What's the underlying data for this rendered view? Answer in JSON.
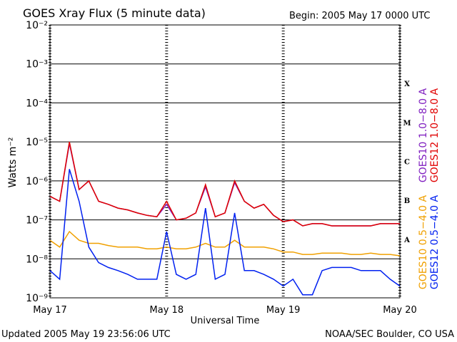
{
  "chart_data": {
    "type": "line",
    "title": "GOES Xray Flux (5 minute data)",
    "subtitle": "Begin:  2005 May 17 0000 UTC",
    "ylabel": "Watts m⁻²",
    "xlabel": "Universal Time",
    "footer_left": "Updated 2005 May 19 23:56:06 UTC",
    "footer_right": "NOAA/SEC Boulder, CO USA",
    "flare_classes": [
      "A",
      "B",
      "C",
      "M",
      "X"
    ],
    "log_y": true,
    "grid": true,
    "xlim": [
      0,
      72
    ],
    "xticks": [
      {
        "value": 0,
        "label": "May 17"
      },
      {
        "value": 24,
        "label": "May 18"
      },
      {
        "value": 48,
        "label": "May 19"
      },
      {
        "value": 72,
        "label": "May 20"
      }
    ],
    "ylim": [
      1e-09,
      0.01
    ],
    "yticks": [
      {
        "value": 1e-09,
        "label": "10⁻⁹"
      },
      {
        "value": 1e-08,
        "label": "10⁻⁸"
      },
      {
        "value": 1e-07,
        "label": "10⁻⁷"
      },
      {
        "value": 1e-06,
        "label": "10⁻⁶"
      },
      {
        "value": 1e-05,
        "label": "10⁻⁵"
      },
      {
        "value": 0.0001,
        "label": "10⁻⁴"
      },
      {
        "value": 0.001,
        "label": "10⁻³"
      },
      {
        "value": 0.01,
        "label": "10⁻²"
      }
    ],
    "x": [
      0,
      2,
      4,
      6,
      8,
      10,
      12,
      14,
      16,
      18,
      20,
      22,
      24,
      26,
      28,
      30,
      32,
      34,
      36,
      38,
      40,
      42,
      44,
      46,
      48,
      50,
      52,
      54,
      56,
      58,
      60,
      62,
      64,
      66,
      68,
      70,
      72
    ],
    "series": [
      {
        "name": "GOES10 1.0−8.0 A",
        "color": "#8020c0",
        "values": [
          4e-07,
          3e-07,
          9e-06,
          6e-07,
          1e-06,
          3e-07,
          2.5e-07,
          2e-07,
          1.8e-07,
          1.5e-07,
          1.3e-07,
          1.2e-07,
          2.5e-07,
          1e-07,
          1.1e-07,
          1.5e-07,
          7e-07,
          1.2e-07,
          1.5e-07,
          9e-07,
          3e-07,
          2e-07,
          2.5e-07,
          1.3e-07,
          9e-08,
          1e-07,
          7e-08,
          8e-08,
          8e-08,
          7e-08,
          7e-08,
          7e-08,
          7e-08,
          7e-08,
          8e-08,
          8e-08,
          8e-08
        ]
      },
      {
        "name": "GOES12 1.0−8.0 A",
        "color": "#e00000",
        "values": [
          4e-07,
          3e-07,
          1e-05,
          6e-07,
          1e-06,
          3e-07,
          2.5e-07,
          2e-07,
          1.8e-07,
          1.5e-07,
          1.3e-07,
          1.2e-07,
          3e-07,
          1e-07,
          1.1e-07,
          1.5e-07,
          8e-07,
          1.2e-07,
          1.5e-07,
          1e-06,
          3e-07,
          2e-07,
          2.5e-07,
          1.3e-07,
          9e-08,
          1e-07,
          7e-08,
          8e-08,
          8e-08,
          7e-08,
          7e-08,
          7e-08,
          7e-08,
          7e-08,
          8e-08,
          8e-08,
          8e-08
        ]
      },
      {
        "name": "GOES10 0.5−4.0 A",
        "color": "#f0a000",
        "values": [
          3e-08,
          2e-08,
          5e-08,
          3e-08,
          2.5e-08,
          2.5e-08,
          2.2e-08,
          2e-08,
          2e-08,
          2e-08,
          1.8e-08,
          1.8e-08,
          2e-08,
          1.8e-08,
          1.8e-08,
          2e-08,
          2.5e-08,
          2e-08,
          2e-08,
          3e-08,
          2e-08,
          2e-08,
          2e-08,
          1.8e-08,
          1.5e-08,
          1.5e-08,
          1.3e-08,
          1.3e-08,
          1.4e-08,
          1.4e-08,
          1.4e-08,
          1.3e-08,
          1.3e-08,
          1.4e-08,
          1.3e-08,
          1.3e-08,
          1.2e-08
        ]
      },
      {
        "name": "GOES12 0.5−4.0 A",
        "color": "#0020f0",
        "values": [
          5e-09,
          3e-09,
          2e-06,
          3e-07,
          2e-08,
          8e-09,
          6e-09,
          5e-09,
          4e-09,
          3e-09,
          3e-09,
          3e-09,
          5e-08,
          4e-09,
          3e-09,
          4e-09,
          2e-07,
          3e-09,
          4e-09,
          1.5e-07,
          5e-09,
          5e-09,
          4e-09,
          3e-09,
          2e-09,
          3e-09,
          1.2e-09,
          1.2e-09,
          5e-09,
          6e-09,
          6e-09,
          6e-09,
          5e-09,
          5e-09,
          5e-09,
          3e-09,
          2e-09
        ]
      }
    ]
  }
}
